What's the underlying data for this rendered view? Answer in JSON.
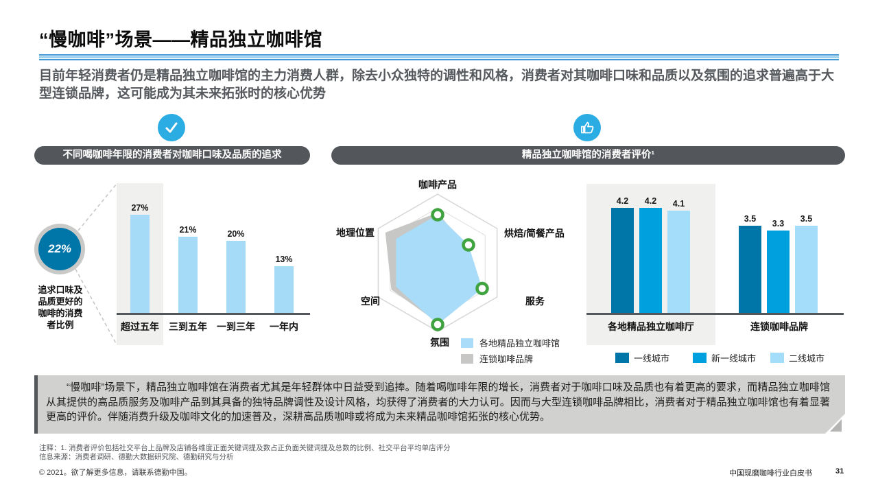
{
  "page": {
    "title": "“慢咖啡”场景——精品独立咖啡馆",
    "subtitle": "目前年轻消费者仍是精品独立咖啡馆的主力消费人群，除去小众独特的调性和风格，消费者对其咖啡口味和品质以及氛围的追求普遍高于大型连锁品牌，这可能成为其未来拓张时的核心优势"
  },
  "left_section": {
    "icon": "check-icon",
    "header": "不同喝咖啡年限的消费者对咖啡口味及品质的追求",
    "callout": {
      "value": "22%",
      "caption": "追求口味及品质更好的咖啡的消费者比例"
    }
  },
  "right_section": {
    "icon": "thumbs-up-icon",
    "header": "精品独立咖啡馆的消费者评价¹"
  },
  "chart_data": [
    {
      "type": "bar",
      "title": "不同喝咖啡年限的消费者对咖啡口味及品质的追求",
      "categories": [
        "超过五年",
        "三到五年",
        "一到三年",
        "一年内"
      ],
      "values": [
        27,
        21,
        20,
        13
      ],
      "unit": "%",
      "ylim": [
        0,
        30
      ],
      "bar_color": "#a5dbf7",
      "highlighted_category": "超过五年"
    },
    {
      "type": "radar",
      "title": "精品独立咖啡馆的消费者评价",
      "axes": [
        "咖啡产品",
        "烘焙/简餐产品",
        "服务",
        "氛围",
        "空间",
        "地理位置"
      ],
      "series": [
        {
          "name": "各地精品独立咖啡馆",
          "color": "#a8dcf8",
          "values": [
            0.7,
            0.52,
            0.75,
            0.9,
            0.7,
            0.7
          ],
          "marker_axes": [
            0,
            1,
            2,
            3
          ]
        },
        {
          "name": "连锁咖啡品牌",
          "color": "#c7c7c5",
          "values": [
            0.73,
            0.48,
            0.6,
            0.87,
            0.78,
            0.88
          ]
        }
      ],
      "legend_position": "bottom-right",
      "marker_color": "#3fa43f"
    },
    {
      "type": "bar",
      "title": "精品独立咖啡馆的消费者评价",
      "categories": [
        "各地精品独立咖啡厅",
        "连锁咖啡品牌"
      ],
      "series": [
        {
          "name": "一线城市",
          "color": "#0076a8",
          "values": [
            4.2,
            3.5
          ]
        },
        {
          "name": "新一线城市",
          "color": "#00a0df",
          "values": [
            4.2,
            3.3
          ]
        },
        {
          "name": "二线城市",
          "color": "#a4ddf9",
          "values": [
            4.1,
            3.5
          ]
        }
      ],
      "ylim": [
        0,
        5
      ],
      "highlighted_category": "各地精品独立咖啡厅",
      "legend_position": "bottom"
    }
  ],
  "note_box": {
    "text": "“慢咖啡”场景下，精品独立咖啡馆在消费者尤其是年轻群体中日益受到追捧。随着喝咖啡年限的增长，消费者对于咖啡口味及品质也有着更高的要求，而精品独立咖啡馆从其提供的高品质服务及咖啡产品到其具备的独特品牌调性及设计风格，均获得了消费者的大力认可。因而与大型连锁咖啡品牌相比，消费者对于精品独立咖啡馆也有着显著更高的评价。伴随消费升级及咖啡文化的加速普及，深耕高品质咖啡或将成为未来精品咖啡馆拓张的核心优势。"
  },
  "footer": {
    "note1": "注释：1. 消费者评价包括社交平台上品牌及店铺各维度正面关键词提及数占正负面关键词提及总数的比例、社交平台平均单店评分",
    "note2": "信息来源：消费者调研、德勤大数据研究院、德勤研究与分析",
    "copyright": "© 2021。欲了解更多信息，请联系德勤中国。",
    "doc_title": "中国现磨咖啡行业白皮书",
    "page_number": "31"
  },
  "colors": {
    "brand_dark_blue": "#0076a8",
    "brand_mid_blue": "#00a0df",
    "brand_light_blue": "#a5dbf7",
    "icon_blue": "#2bace3",
    "pill_gray": "#53565a",
    "panel_gray": "#f0f0ee",
    "note_gray": "#d1d1cf",
    "radar_gray": "#c7c7c5",
    "marker_green": "#3fa43f"
  }
}
